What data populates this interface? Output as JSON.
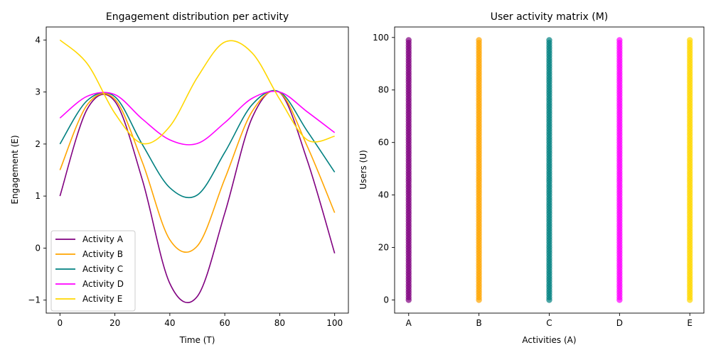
{
  "chart_data": [
    {
      "type": "line",
      "title": "Engagement distribution per activity",
      "xlabel": "Time (T)",
      "ylabel": "Engagement (E)",
      "xlim": [
        -5,
        105
      ],
      "ylim": [
        -1.25,
        4.25
      ],
      "xticks": [
        0,
        20,
        40,
        60,
        80,
        100
      ],
      "yticks": [
        -1,
        0,
        1,
        2,
        3,
        4
      ],
      "ytick_labels": [
        "−1",
        "0",
        "1",
        "2",
        "3",
        "4"
      ],
      "grid": false,
      "legend_position": "lower-left",
      "x": [
        0,
        10,
        20,
        30,
        40,
        50,
        60,
        70,
        80,
        90,
        100
      ],
      "series": [
        {
          "name": "Activity A",
          "color": "#800080",
          "values": [
            1.0,
            2.68,
            2.82,
            1.31,
            -0.68,
            -0.93,
            0.67,
            2.51,
            2.99,
            1.69,
            -0.1
          ]
        },
        {
          "name": "Activity B",
          "color": "#FFA500",
          "values": [
            1.5,
            2.76,
            2.86,
            1.65,
            0.16,
            0.04,
            1.33,
            2.63,
            2.99,
            1.96,
            0.68
          ]
        },
        {
          "name": "Activity C",
          "color": "#008080",
          "values": [
            2.0,
            2.84,
            2.91,
            1.99,
            1.16,
            1.02,
            1.84,
            2.76,
            3.0,
            2.25,
            1.46
          ]
        },
        {
          "name": "Activity D",
          "color": "#FF00FF",
          "values": [
            2.5,
            2.92,
            2.95,
            2.48,
            2.08,
            2.01,
            2.41,
            2.88,
            3.0,
            2.62,
            2.22
          ]
        },
        {
          "name": "Activity E",
          "color": "#FFD700",
          "values": [
            4.0,
            3.54,
            2.59,
            2.01,
            2.34,
            3.28,
            3.96,
            3.75,
            2.86,
            2.08,
            2.15
          ]
        }
      ]
    },
    {
      "type": "scatter",
      "title": "User activity matrix (M)",
      "xlabel": "Activities (A)",
      "ylabel": "Users (U)",
      "categories": [
        "A",
        "B",
        "C",
        "D",
        "E"
      ],
      "ylim": [
        -5,
        104
      ],
      "yticks": [
        0,
        20,
        40,
        60,
        80,
        100
      ],
      "grid": false,
      "y_points_per_category": {
        "start": 0,
        "end": 99,
        "step": 1
      },
      "series": [
        {
          "category": "A",
          "color": "#800080"
        },
        {
          "category": "B",
          "color": "#FFA500"
        },
        {
          "category": "C",
          "color": "#008080"
        },
        {
          "category": "D",
          "color": "#FF00FF"
        },
        {
          "category": "E",
          "color": "#FFD700"
        }
      ]
    }
  ]
}
